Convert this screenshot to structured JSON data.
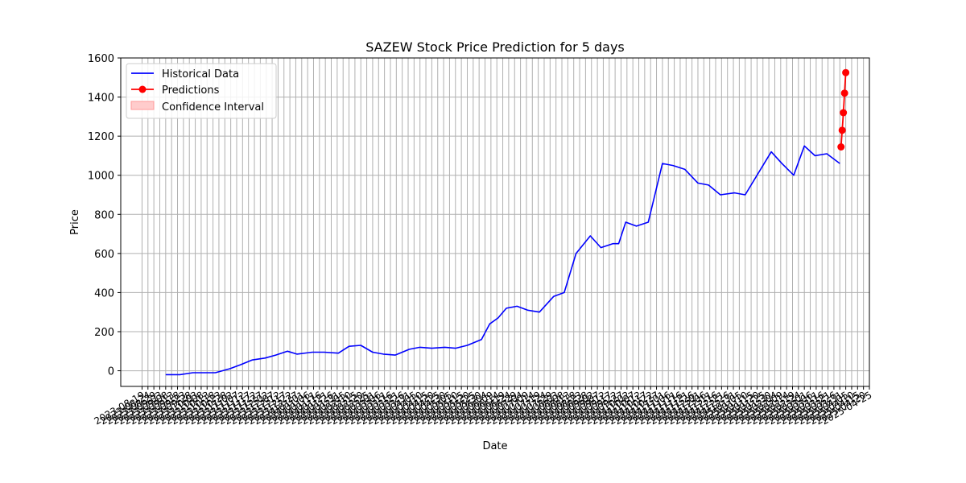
{
  "chart_data": {
    "type": "line",
    "title": "SAZEW Stock Price Prediction for 5 days",
    "xlabel": "Date",
    "ylabel": "Price",
    "ylim": [
      -80,
      1600
    ],
    "yticks": [
      0,
      200,
      400,
      600,
      800,
      1000,
      1200,
      1400,
      1600
    ],
    "x_range_dates": [
      "2023-08-01",
      "2025-04-25"
    ],
    "grid": true,
    "legend_position": "top-left",
    "legend": [
      "Historical Data",
      "Predictions",
      "Confidence Interval"
    ],
    "colors": {
      "historical": "#0000ff",
      "predictions": "#ff0000",
      "confidence": "#ffb0b0"
    },
    "historical": {
      "name": "Historical Data",
      "dates": [
        "2023-09-08",
        "2023-09-20",
        "2023-10-01",
        "2023-10-20",
        "2023-11-01",
        "2023-11-10",
        "2023-11-20",
        "2023-12-01",
        "2023-12-10",
        "2023-12-20",
        "2023-12-28",
        "2024-01-10",
        "2024-01-20",
        "2024-02-01",
        "2024-02-10",
        "2024-02-20",
        "2024-03-01",
        "2024-03-10",
        "2024-03-20",
        "2024-04-01",
        "2024-04-10",
        "2024-04-20",
        "2024-05-01",
        "2024-05-10",
        "2024-05-20",
        "2024-06-01",
        "2024-06-08",
        "2024-06-15",
        "2024-06-22",
        "2024-07-01",
        "2024-07-10",
        "2024-07-20",
        "2024-08-01",
        "2024-08-10",
        "2024-08-20",
        "2024-09-01",
        "2024-09-10",
        "2024-09-20",
        "2024-09-25",
        "2024-10-01",
        "2024-10-10",
        "2024-10-20",
        "2024-11-01",
        "2024-11-10",
        "2024-11-20",
        "2024-12-01",
        "2024-12-10",
        "2024-12-20",
        "2025-01-01",
        "2025-01-10",
        "2025-01-20",
        "2025-02-01",
        "2025-02-10",
        "2025-02-20",
        "2025-03-01",
        "2025-03-10",
        "2025-03-20",
        "2025-03-31"
      ],
      "values": [
        -20,
        -20,
        -10,
        -10,
        10,
        30,
        55,
        65,
        80,
        100,
        85,
        95,
        95,
        90,
        125,
        130,
        95,
        85,
        80,
        110,
        120,
        115,
        120,
        115,
        130,
        160,
        240,
        270,
        320,
        330,
        310,
        300,
        380,
        400,
        600,
        690,
        630,
        650,
        650,
        760,
        740,
        760,
        1060,
        1050,
        1030,
        960,
        950,
        900,
        910,
        900,
        1000,
        1120,
        1060,
        1000,
        1150,
        1100,
        1110,
        1060
      ]
    },
    "predictions": {
      "name": "Predictions",
      "dates": [
        "2025-04-01",
        "2025-04-02",
        "2025-04-03",
        "2025-04-04",
        "2025-04-05"
      ],
      "values": [
        1145,
        1230,
        1320,
        1420,
        1525
      ]
    }
  }
}
